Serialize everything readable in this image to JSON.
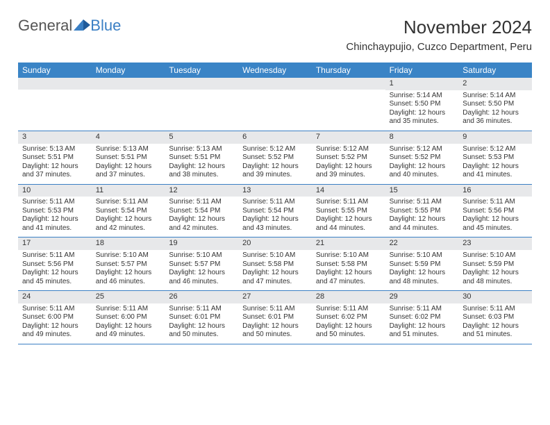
{
  "brand": {
    "part1": "General",
    "part2": "Blue"
  },
  "title": "November 2024",
  "location": "Chinchaypujio, Cuzco Department, Peru",
  "colors": {
    "header_bg": "#3a84c6",
    "header_text": "#ffffff",
    "daynum_bg": "#e7e8ea",
    "rule": "#3a7fc4",
    "text": "#333333",
    "brand_gray": "#555555",
    "brand_blue": "#3a7fc4",
    "background": "#ffffff"
  },
  "typography": {
    "title_fontsize": 26,
    "location_fontsize": 15,
    "weekday_fontsize": 12,
    "daynum_fontsize": 11,
    "body_fontsize": 10,
    "logo_fontsize": 22
  },
  "weekdays": [
    "Sunday",
    "Monday",
    "Tuesday",
    "Wednesday",
    "Thursday",
    "Friday",
    "Saturday"
  ],
  "weeks": [
    [
      {
        "n": "",
        "sr": "",
        "ss": "",
        "dl": ""
      },
      {
        "n": "",
        "sr": "",
        "ss": "",
        "dl": ""
      },
      {
        "n": "",
        "sr": "",
        "ss": "",
        "dl": ""
      },
      {
        "n": "",
        "sr": "",
        "ss": "",
        "dl": ""
      },
      {
        "n": "",
        "sr": "",
        "ss": "",
        "dl": ""
      },
      {
        "n": "1",
        "sr": "Sunrise: 5:14 AM",
        "ss": "Sunset: 5:50 PM",
        "dl": "Daylight: 12 hours and 35 minutes."
      },
      {
        "n": "2",
        "sr": "Sunrise: 5:14 AM",
        "ss": "Sunset: 5:50 PM",
        "dl": "Daylight: 12 hours and 36 minutes."
      }
    ],
    [
      {
        "n": "3",
        "sr": "Sunrise: 5:13 AM",
        "ss": "Sunset: 5:51 PM",
        "dl": "Daylight: 12 hours and 37 minutes."
      },
      {
        "n": "4",
        "sr": "Sunrise: 5:13 AM",
        "ss": "Sunset: 5:51 PM",
        "dl": "Daylight: 12 hours and 37 minutes."
      },
      {
        "n": "5",
        "sr": "Sunrise: 5:13 AM",
        "ss": "Sunset: 5:51 PM",
        "dl": "Daylight: 12 hours and 38 minutes."
      },
      {
        "n": "6",
        "sr": "Sunrise: 5:12 AM",
        "ss": "Sunset: 5:52 PM",
        "dl": "Daylight: 12 hours and 39 minutes."
      },
      {
        "n": "7",
        "sr": "Sunrise: 5:12 AM",
        "ss": "Sunset: 5:52 PM",
        "dl": "Daylight: 12 hours and 39 minutes."
      },
      {
        "n": "8",
        "sr": "Sunrise: 5:12 AM",
        "ss": "Sunset: 5:52 PM",
        "dl": "Daylight: 12 hours and 40 minutes."
      },
      {
        "n": "9",
        "sr": "Sunrise: 5:12 AM",
        "ss": "Sunset: 5:53 PM",
        "dl": "Daylight: 12 hours and 41 minutes."
      }
    ],
    [
      {
        "n": "10",
        "sr": "Sunrise: 5:11 AM",
        "ss": "Sunset: 5:53 PM",
        "dl": "Daylight: 12 hours and 41 minutes."
      },
      {
        "n": "11",
        "sr": "Sunrise: 5:11 AM",
        "ss": "Sunset: 5:54 PM",
        "dl": "Daylight: 12 hours and 42 minutes."
      },
      {
        "n": "12",
        "sr": "Sunrise: 5:11 AM",
        "ss": "Sunset: 5:54 PM",
        "dl": "Daylight: 12 hours and 42 minutes."
      },
      {
        "n": "13",
        "sr": "Sunrise: 5:11 AM",
        "ss": "Sunset: 5:54 PM",
        "dl": "Daylight: 12 hours and 43 minutes."
      },
      {
        "n": "14",
        "sr": "Sunrise: 5:11 AM",
        "ss": "Sunset: 5:55 PM",
        "dl": "Daylight: 12 hours and 44 minutes."
      },
      {
        "n": "15",
        "sr": "Sunrise: 5:11 AM",
        "ss": "Sunset: 5:55 PM",
        "dl": "Daylight: 12 hours and 44 minutes."
      },
      {
        "n": "16",
        "sr": "Sunrise: 5:11 AM",
        "ss": "Sunset: 5:56 PM",
        "dl": "Daylight: 12 hours and 45 minutes."
      }
    ],
    [
      {
        "n": "17",
        "sr": "Sunrise: 5:11 AM",
        "ss": "Sunset: 5:56 PM",
        "dl": "Daylight: 12 hours and 45 minutes."
      },
      {
        "n": "18",
        "sr": "Sunrise: 5:10 AM",
        "ss": "Sunset: 5:57 PM",
        "dl": "Daylight: 12 hours and 46 minutes."
      },
      {
        "n": "19",
        "sr": "Sunrise: 5:10 AM",
        "ss": "Sunset: 5:57 PM",
        "dl": "Daylight: 12 hours and 46 minutes."
      },
      {
        "n": "20",
        "sr": "Sunrise: 5:10 AM",
        "ss": "Sunset: 5:58 PM",
        "dl": "Daylight: 12 hours and 47 minutes."
      },
      {
        "n": "21",
        "sr": "Sunrise: 5:10 AM",
        "ss": "Sunset: 5:58 PM",
        "dl": "Daylight: 12 hours and 47 minutes."
      },
      {
        "n": "22",
        "sr": "Sunrise: 5:10 AM",
        "ss": "Sunset: 5:59 PM",
        "dl": "Daylight: 12 hours and 48 minutes."
      },
      {
        "n": "23",
        "sr": "Sunrise: 5:10 AM",
        "ss": "Sunset: 5:59 PM",
        "dl": "Daylight: 12 hours and 48 minutes."
      }
    ],
    [
      {
        "n": "24",
        "sr": "Sunrise: 5:11 AM",
        "ss": "Sunset: 6:00 PM",
        "dl": "Daylight: 12 hours and 49 minutes."
      },
      {
        "n": "25",
        "sr": "Sunrise: 5:11 AM",
        "ss": "Sunset: 6:00 PM",
        "dl": "Daylight: 12 hours and 49 minutes."
      },
      {
        "n": "26",
        "sr": "Sunrise: 5:11 AM",
        "ss": "Sunset: 6:01 PM",
        "dl": "Daylight: 12 hours and 50 minutes."
      },
      {
        "n": "27",
        "sr": "Sunrise: 5:11 AM",
        "ss": "Sunset: 6:01 PM",
        "dl": "Daylight: 12 hours and 50 minutes."
      },
      {
        "n": "28",
        "sr": "Sunrise: 5:11 AM",
        "ss": "Sunset: 6:02 PM",
        "dl": "Daylight: 12 hours and 50 minutes."
      },
      {
        "n": "29",
        "sr": "Sunrise: 5:11 AM",
        "ss": "Sunset: 6:02 PM",
        "dl": "Daylight: 12 hours and 51 minutes."
      },
      {
        "n": "30",
        "sr": "Sunrise: 5:11 AM",
        "ss": "Sunset: 6:03 PM",
        "dl": "Daylight: 12 hours and 51 minutes."
      }
    ]
  ]
}
